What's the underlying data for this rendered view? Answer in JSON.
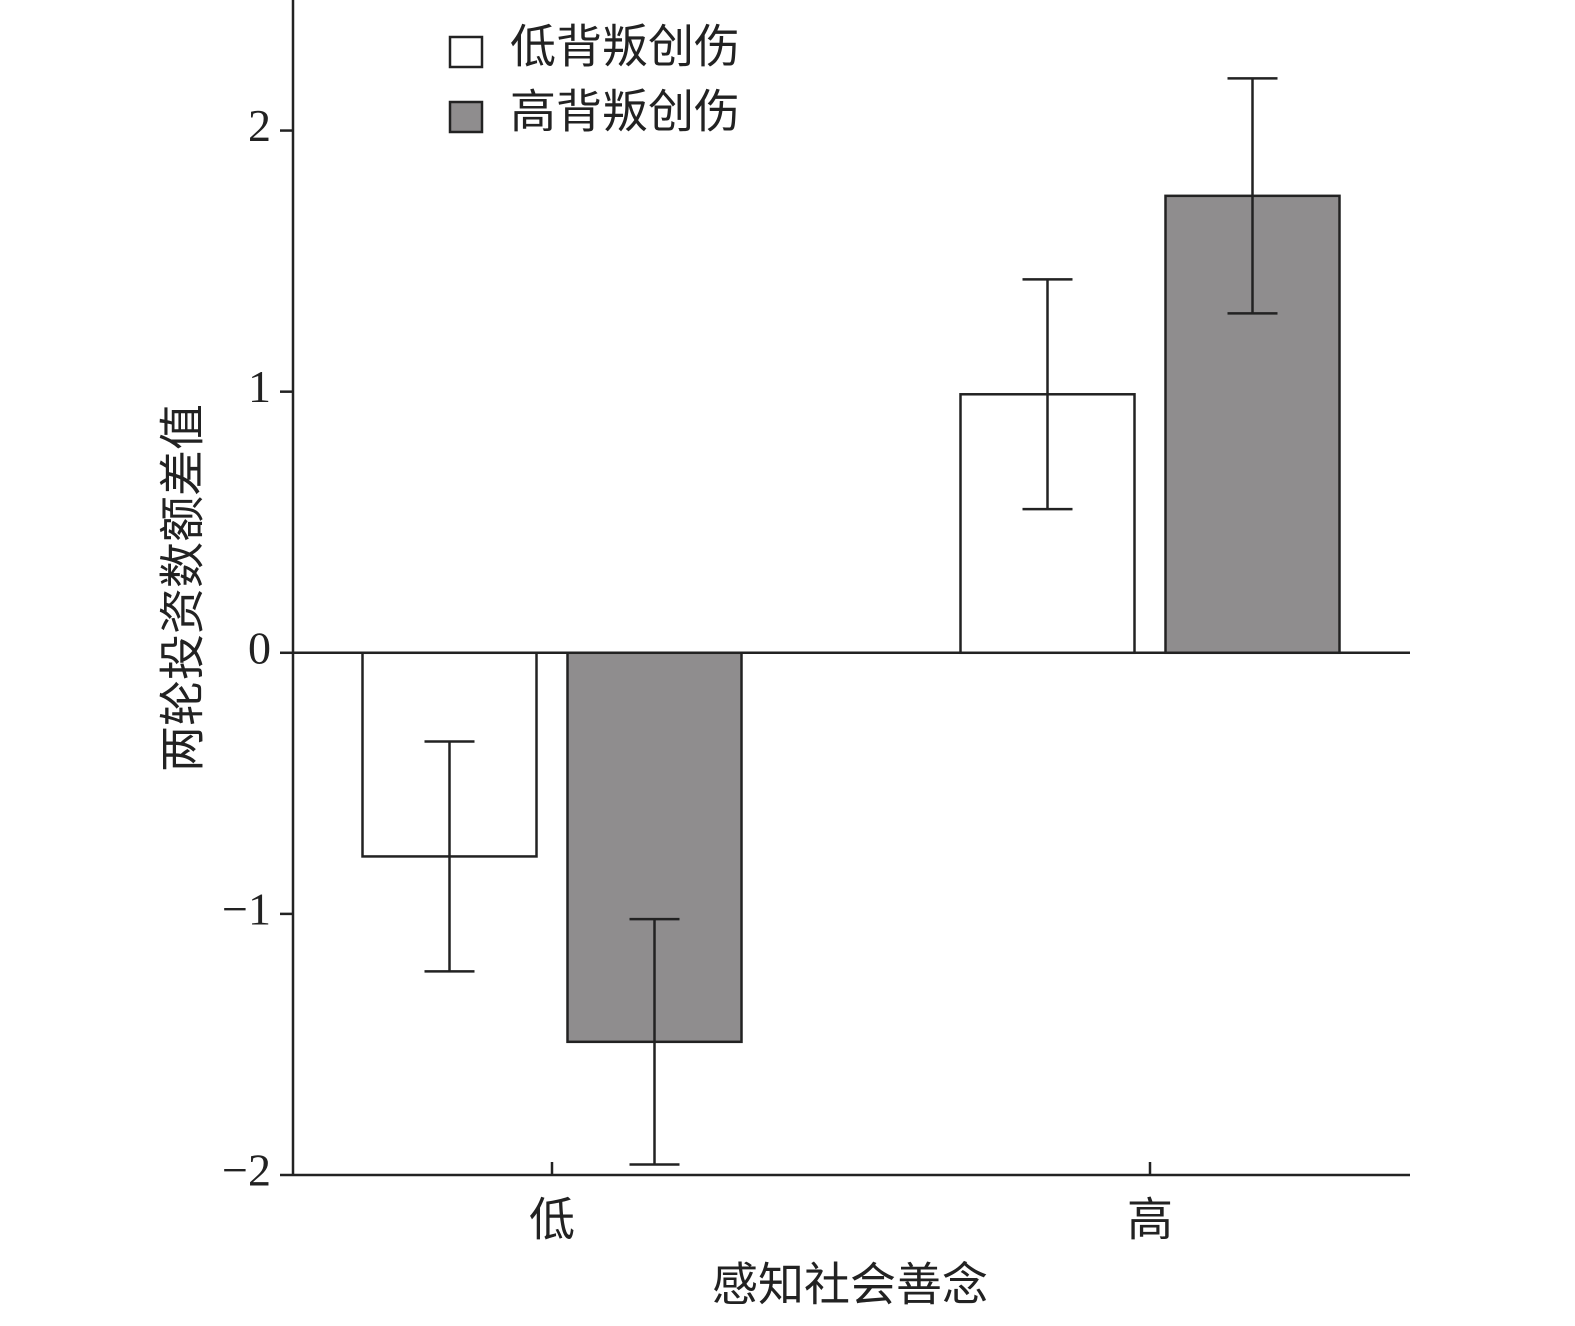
{
  "chart_data": {
    "type": "bar",
    "x_label": "感知社会善念",
    "y_label": "两轮投资数额差值",
    "categories": [
      "低",
      "高"
    ],
    "series": [
      {
        "name": "低背叛创伤",
        "color": "#ffffff",
        "values": [
          -0.78,
          0.99
        ],
        "errors": [
          0.44,
          0.44
        ]
      },
      {
        "name": "高背叛创伤",
        "color": "#8f8d8e",
        "values": [
          -1.49,
          1.75
        ],
        "errors": [
          0.47,
          0.45
        ]
      }
    ],
    "ylim": [
      -2,
      2.5
    ],
    "yticks": [
      {
        "value": -2,
        "label": "−2"
      },
      {
        "value": -1,
        "label": "−1"
      },
      0,
      1,
      2
    ],
    "legend": "upper left"
  }
}
